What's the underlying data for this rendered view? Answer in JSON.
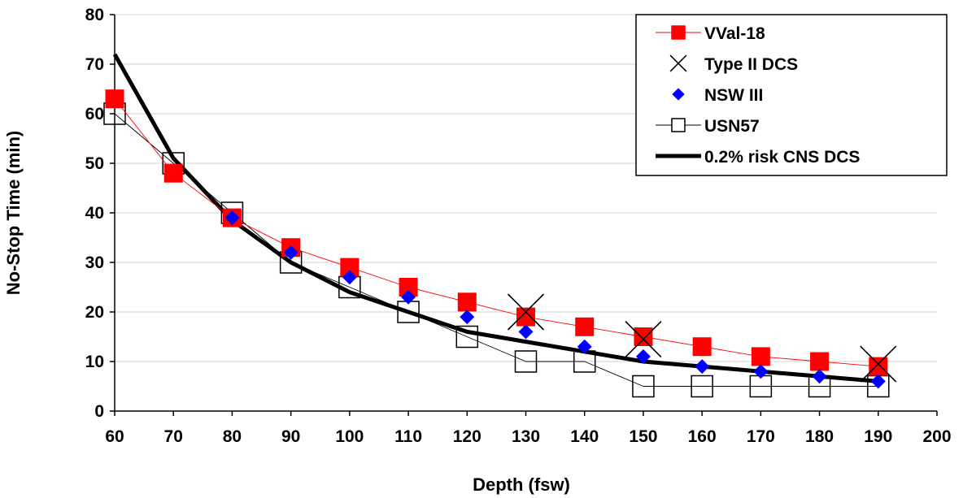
{
  "chart_data": {
    "type": "line",
    "title": "",
    "xlabel": "Depth (fsw)",
    "ylabel": "No-Stop Time (min)",
    "xlim": [
      60,
      200
    ],
    "ylim": [
      0,
      80
    ],
    "x_ticks": [
      60,
      70,
      80,
      90,
      100,
      110,
      120,
      130,
      140,
      150,
      160,
      170,
      180,
      190,
      200
    ],
    "y_ticks": [
      0,
      10,
      20,
      30,
      40,
      50,
      60,
      70,
      80
    ],
    "grid": "horizontal",
    "legend_position": "top-right",
    "series": [
      {
        "name": "VVal-18",
        "color": "#ff0000",
        "marker": "square",
        "x": [
          60,
          70,
          80,
          90,
          100,
          110,
          120,
          130,
          140,
          150,
          160,
          170,
          180,
          190
        ],
        "values": [
          63,
          48,
          39,
          33,
          29,
          25,
          22,
          19,
          17,
          15,
          13,
          11,
          10,
          9
        ]
      },
      {
        "name": "Type II DCS",
        "color": "#000000",
        "marker": "x",
        "x": [
          130,
          150,
          190
        ],
        "values": [
          20,
          14.5,
          9.5
        ]
      },
      {
        "name": "NSW III",
        "color": "#0000ff",
        "marker": "diamond",
        "x": [
          80,
          90,
          100,
          110,
          120,
          130,
          140,
          150,
          160,
          170,
          180,
          190
        ],
        "values": [
          39,
          32,
          27,
          23,
          19,
          16,
          13,
          11,
          9,
          8,
          7,
          6
        ]
      },
      {
        "name": "USN57",
        "color": "#000000",
        "marker": "open-square",
        "x": [
          60,
          70,
          80,
          90,
          100,
          110,
          120,
          130,
          140,
          150,
          160,
          170,
          180,
          190
        ],
        "values": [
          60,
          50,
          40,
          30,
          25,
          20,
          15,
          10,
          10,
          5,
          5,
          5,
          5,
          5
        ]
      },
      {
        "name": "0.2% risk CNS DCS",
        "color": "#000000",
        "marker": "none",
        "x": [
          60,
          70,
          80,
          90,
          100,
          110,
          120,
          130,
          140,
          150,
          160,
          170,
          180,
          190
        ],
        "values": [
          72,
          51,
          38.5,
          30,
          24,
          20,
          16,
          14,
          12,
          10,
          9,
          8,
          7,
          6
        ]
      }
    ]
  }
}
